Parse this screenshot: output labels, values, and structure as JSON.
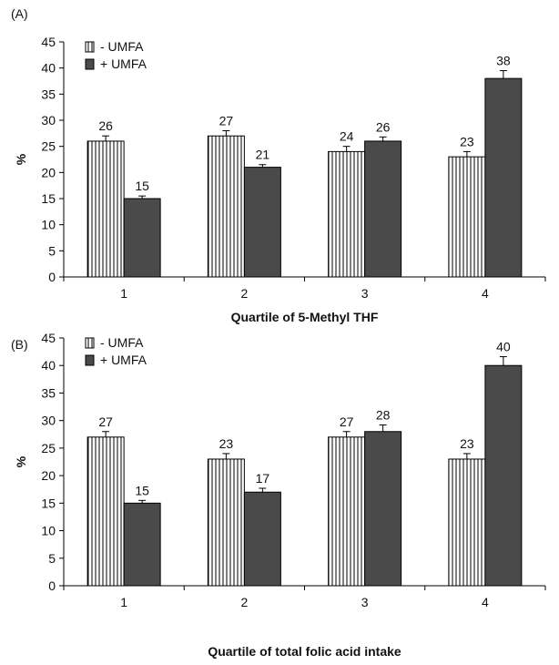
{
  "figure": {
    "panels": [
      {
        "label": "(A)"
      },
      {
        "label": "(B)"
      }
    ]
  },
  "colors": {
    "plus_umfa": "#4a4a4a",
    "minus_umfa_fill": "#ffffff",
    "minus_umfa_stripe": "#000000",
    "axis": "#000000"
  },
  "chart_data": [
    {
      "type": "bar",
      "panel": "(A)",
      "title": "",
      "xlabel": "Quartile of 5-Methyl THF",
      "ylabel": "%",
      "categories": [
        "1",
        "2",
        "3",
        "4"
      ],
      "ylim": [
        0,
        45
      ],
      "yticks": [
        0,
        5,
        10,
        15,
        20,
        25,
        30,
        35,
        40,
        45
      ],
      "grid": false,
      "legend_position": "top-left",
      "series": [
        {
          "name": "- UMFA",
          "values": [
            26,
            27,
            24,
            23
          ],
          "error": [
            1,
            1,
            1,
            1
          ],
          "value_labels": [
            "26",
            "27",
            "24",
            "23"
          ]
        },
        {
          "name": "+ UMFA",
          "values": [
            15,
            21,
            26,
            38
          ],
          "error": [
            0.5,
            0.5,
            0.8,
            1.5
          ],
          "value_labels": [
            "15",
            "21",
            "26",
            "38"
          ]
        }
      ]
    },
    {
      "type": "bar",
      "panel": "(B)",
      "title": "",
      "xlabel": "Quartile of total folic acid intake",
      "ylabel": "%",
      "categories": [
        "1",
        "2",
        "3",
        "4"
      ],
      "ylim": [
        0,
        45
      ],
      "yticks": [
        0,
        5,
        10,
        15,
        20,
        25,
        30,
        35,
        40,
        45
      ],
      "grid": false,
      "legend_position": "top-left",
      "series": [
        {
          "name": "- UMFA",
          "values": [
            27,
            23,
            27,
            23
          ],
          "error": [
            1,
            1,
            1,
            1
          ],
          "value_labels": [
            "27",
            "23",
            "27",
            "23"
          ]
        },
        {
          "name": "+ UMFA",
          "values": [
            15,
            17,
            28,
            40
          ],
          "error": [
            0.5,
            0.7,
            1.2,
            1.6
          ],
          "value_labels": [
            "15",
            "17",
            "28",
            "40"
          ]
        }
      ]
    }
  ]
}
